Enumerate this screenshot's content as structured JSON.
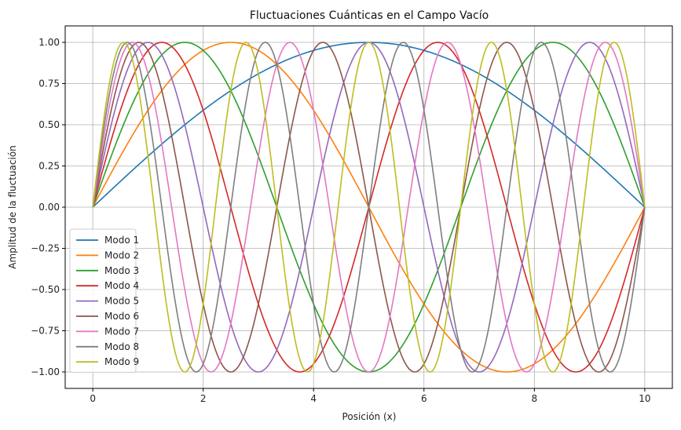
{
  "chart_data": {
    "type": "line",
    "title": "Fluctuaciones Cuánticas en el Campo Vacío",
    "xlabel": "Posición (x)",
    "ylabel": "Amplitud de la fluctuación",
    "xlim": [
      -0.5,
      10.5
    ],
    "ylim": [
      -1.1,
      1.1
    ],
    "x_ticks": [
      0,
      2,
      4,
      6,
      8,
      10
    ],
    "x_tick_labels": [
      "0",
      "2",
      "4",
      "6",
      "8",
      "10"
    ],
    "y_ticks": [
      -1.0,
      -0.75,
      -0.5,
      -0.25,
      0.0,
      0.25,
      0.5,
      0.75,
      1.0
    ],
    "y_tick_labels": [
      "−1.00",
      "−0.75",
      "−0.50",
      "−0.25",
      "0.00",
      "0.25",
      "0.50",
      "0.75",
      "1.00"
    ],
    "grid": true,
    "legend_position": "lower-left",
    "x_domain": [
      0,
      10
    ],
    "series": [
      {
        "name": "Modo 1",
        "mode": 1,
        "color": "#1f77b4"
      },
      {
        "name": "Modo 2",
        "mode": 2,
        "color": "#ff7f0e"
      },
      {
        "name": "Modo 3",
        "mode": 3,
        "color": "#2ca02c"
      },
      {
        "name": "Modo 4",
        "mode": 4,
        "color": "#d62728"
      },
      {
        "name": "Modo 5",
        "mode": 5,
        "color": "#9467bd"
      },
      {
        "name": "Modo 6",
        "mode": 6,
        "color": "#8c564b"
      },
      {
        "name": "Modo 7",
        "mode": 7,
        "color": "#e377c2"
      },
      {
        "name": "Modo 8",
        "mode": 8,
        "color": "#7f7f7f"
      },
      {
        "name": "Modo 9",
        "mode": 9,
        "color": "#bcbd22"
      }
    ]
  }
}
